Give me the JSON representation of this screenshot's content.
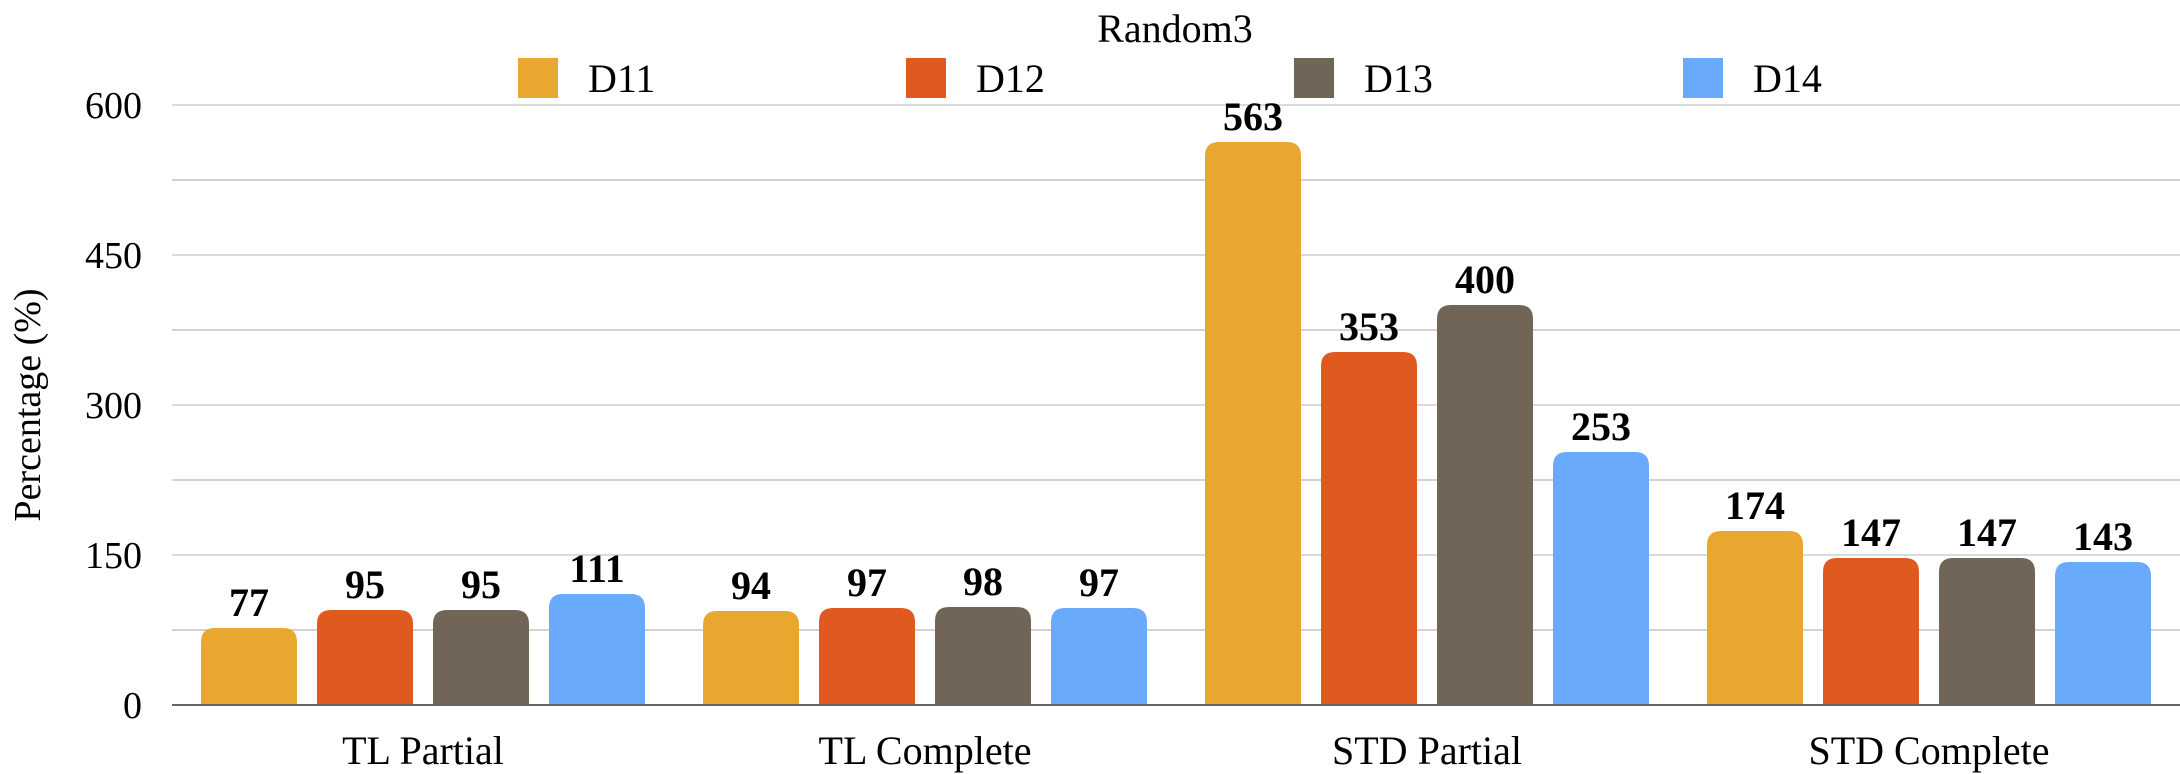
{
  "chart_data": {
    "type": "bar",
    "title": "Random3",
    "xlabel": "",
    "ylabel": "Percentage (%)",
    "ylim": [
      0,
      600
    ],
    "yticks": [
      0,
      150,
      300,
      450,
      600
    ],
    "grid": true,
    "legend_position": "top",
    "categories": [
      "TL Partial",
      "TL Complete",
      "STD Partial",
      "STD Complete"
    ],
    "series": [
      {
        "name": "D11",
        "color": "#E9A72F",
        "values": [
          77,
          94,
          563,
          174
        ]
      },
      {
        "name": "D12",
        "color": "#E05A20",
        "values": [
          95,
          97,
          353,
          147
        ]
      },
      {
        "name": "D13",
        "color": "#716557",
        "values": [
          95,
          98,
          400,
          147
        ]
      },
      {
        "name": "D14",
        "color": "#6AAAFC",
        "values": [
          111,
          97,
          253,
          143
        ]
      }
    ]
  }
}
